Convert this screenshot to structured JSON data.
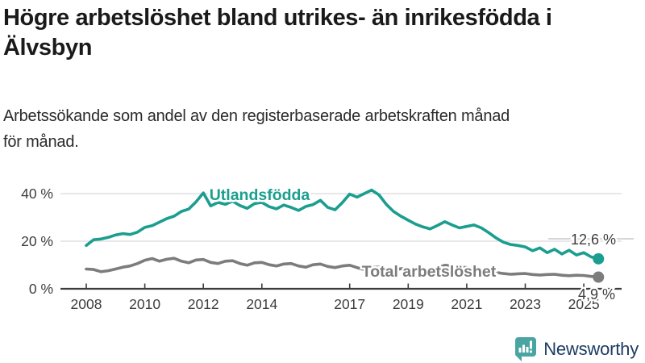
{
  "header": {
    "title_lines": [
      "Högre arbetslöshet bland utrikes- än inrikesfödda i",
      "Älvsbyn"
    ],
    "subtitle_lines": [
      "Arbetssökande som andel av den registerbaserade arbetskraften månad",
      "för månad."
    ]
  },
  "chart_data": {
    "type": "line",
    "unit": "%",
    "grid": "horizontal",
    "legend_position": "inline-labels",
    "x_ticks": [
      2008,
      2010,
      2012,
      2014,
      2017,
      2019,
      2021,
      2023,
      2025
    ],
    "y_ticks": [
      0,
      20,
      40
    ],
    "y_tick_labels": [
      "0 %",
      "20 %",
      "40 %"
    ],
    "ylim": [
      0,
      44
    ],
    "xlim": [
      2007.1,
      2026.3
    ],
    "series": [
      {
        "name": "Utlandsfödda",
        "color": "#1b9e8f",
        "end_label": "12,6 %",
        "end_value": 12.6,
        "points": [
          [
            2008.0,
            18.2
          ],
          [
            2008.25,
            20.6
          ],
          [
            2008.5,
            20.9
          ],
          [
            2008.75,
            21.6
          ],
          [
            2009.0,
            22.6
          ],
          [
            2009.25,
            23.2
          ],
          [
            2009.5,
            22.8
          ],
          [
            2009.75,
            23.8
          ],
          [
            2010.0,
            25.8
          ],
          [
            2010.25,
            26.5
          ],
          [
            2010.5,
            28.0
          ],
          [
            2010.75,
            29.5
          ],
          [
            2011.0,
            30.5
          ],
          [
            2011.25,
            32.5
          ],
          [
            2011.5,
            33.5
          ],
          [
            2011.75,
            36.5
          ],
          [
            2012.0,
            40.3
          ],
          [
            2012.25,
            34.8
          ],
          [
            2012.5,
            36.3
          ],
          [
            2012.75,
            35.5
          ],
          [
            2013.0,
            36.8
          ],
          [
            2013.25,
            35.0
          ],
          [
            2013.5,
            33.8
          ],
          [
            2013.75,
            35.8
          ],
          [
            2014.0,
            36.3
          ],
          [
            2014.25,
            34.5
          ],
          [
            2014.5,
            33.6
          ],
          [
            2014.75,
            35.2
          ],
          [
            2015.0,
            34.2
          ],
          [
            2015.25,
            32.9
          ],
          [
            2015.5,
            34.6
          ],
          [
            2015.75,
            35.4
          ],
          [
            2016.0,
            37.2
          ],
          [
            2016.25,
            34.2
          ],
          [
            2016.5,
            33.2
          ],
          [
            2016.75,
            36.2
          ],
          [
            2017.0,
            39.8
          ],
          [
            2017.25,
            38.5
          ],
          [
            2017.5,
            40.0
          ],
          [
            2017.75,
            41.5
          ],
          [
            2018.0,
            39.5
          ],
          [
            2018.25,
            35.5
          ],
          [
            2018.5,
            32.5
          ],
          [
            2018.75,
            30.5
          ],
          [
            2019.0,
            28.8
          ],
          [
            2019.25,
            27.2
          ],
          [
            2019.5,
            26.0
          ],
          [
            2019.75,
            25.2
          ],
          [
            2020.0,
            26.6
          ],
          [
            2020.25,
            28.2
          ],
          [
            2020.5,
            26.8
          ],
          [
            2020.75,
            25.6
          ],
          [
            2021.0,
            26.2
          ],
          [
            2021.25,
            26.8
          ],
          [
            2021.5,
            25.6
          ],
          [
            2021.75,
            23.6
          ],
          [
            2022.0,
            21.4
          ],
          [
            2022.25,
            19.6
          ],
          [
            2022.5,
            18.6
          ],
          [
            2022.75,
            18.2
          ],
          [
            2023.0,
            17.6
          ],
          [
            2023.25,
            16.0
          ],
          [
            2023.5,
            17.2
          ],
          [
            2023.75,
            15.2
          ],
          [
            2024.0,
            16.6
          ],
          [
            2024.25,
            14.6
          ],
          [
            2024.5,
            16.2
          ],
          [
            2024.75,
            14.2
          ],
          [
            2025.0,
            15.2
          ],
          [
            2025.25,
            13.4
          ],
          [
            2025.5,
            12.6
          ]
        ]
      },
      {
        "name": "Total arbetslöshet",
        "color": "#7c7c7c",
        "end_label": "4,9 %",
        "end_value": 4.9,
        "points": [
          [
            2008.0,
            8.3
          ],
          [
            2008.25,
            8.1
          ],
          [
            2008.5,
            7.2
          ],
          [
            2008.75,
            7.6
          ],
          [
            2009.0,
            8.3
          ],
          [
            2009.25,
            9.1
          ],
          [
            2009.5,
            9.6
          ],
          [
            2009.75,
            10.6
          ],
          [
            2010.0,
            12.0
          ],
          [
            2010.25,
            12.7
          ],
          [
            2010.5,
            11.6
          ],
          [
            2010.75,
            12.4
          ],
          [
            2011.0,
            12.8
          ],
          [
            2011.25,
            11.6
          ],
          [
            2011.5,
            10.9
          ],
          [
            2011.75,
            12.1
          ],
          [
            2012.0,
            12.3
          ],
          [
            2012.25,
            11.1
          ],
          [
            2012.5,
            10.6
          ],
          [
            2012.75,
            11.6
          ],
          [
            2013.0,
            11.8
          ],
          [
            2013.25,
            10.6
          ],
          [
            2013.5,
            9.9
          ],
          [
            2013.75,
            10.9
          ],
          [
            2014.0,
            11.1
          ],
          [
            2014.25,
            10.1
          ],
          [
            2014.5,
            9.6
          ],
          [
            2014.75,
            10.4
          ],
          [
            2015.0,
            10.6
          ],
          [
            2015.25,
            9.6
          ],
          [
            2015.5,
            9.1
          ],
          [
            2015.75,
            10.1
          ],
          [
            2016.0,
            10.4
          ],
          [
            2016.25,
            9.4
          ],
          [
            2016.5,
            8.9
          ],
          [
            2016.75,
            9.6
          ],
          [
            2017.0,
            9.9
          ],
          [
            2017.25,
            8.9
          ],
          [
            2017.5,
            8.1
          ],
          [
            2017.75,
            8.9
          ],
          [
            2018.0,
            9.1
          ],
          [
            2018.25,
            8.3
          ],
          [
            2018.5,
            7.9
          ],
          [
            2018.75,
            8.4
          ],
          [
            2019.0,
            8.6
          ],
          [
            2019.25,
            7.9
          ],
          [
            2019.5,
            7.6
          ],
          [
            2019.75,
            8.1
          ],
          [
            2020.0,
            8.9
          ],
          [
            2020.25,
            9.9
          ],
          [
            2020.5,
            9.6
          ],
          [
            2020.75,
            9.1
          ],
          [
            2021.0,
            8.9
          ],
          [
            2021.25,
            8.4
          ],
          [
            2021.5,
            7.9
          ],
          [
            2021.75,
            7.4
          ],
          [
            2022.0,
            6.9
          ],
          [
            2022.25,
            6.4
          ],
          [
            2022.5,
            6.1
          ],
          [
            2022.75,
            6.3
          ],
          [
            2023.0,
            6.4
          ],
          [
            2023.25,
            6.0
          ],
          [
            2023.5,
            5.8
          ],
          [
            2023.75,
            6.0
          ],
          [
            2024.0,
            6.1
          ],
          [
            2024.25,
            5.7
          ],
          [
            2024.5,
            5.5
          ],
          [
            2024.75,
            5.7
          ],
          [
            2025.0,
            5.6
          ],
          [
            2025.25,
            5.2
          ],
          [
            2025.5,
            4.9
          ]
        ]
      }
    ],
    "colors": {
      "grid": "#d9d9d9",
      "axis": "#3d3d3d",
      "tick_text": "#3d3d3d",
      "value_label_text": "#3d3d3d",
      "leader_line": "#c9c9c9"
    }
  },
  "footer": {
    "brand": "Newsworthy"
  }
}
